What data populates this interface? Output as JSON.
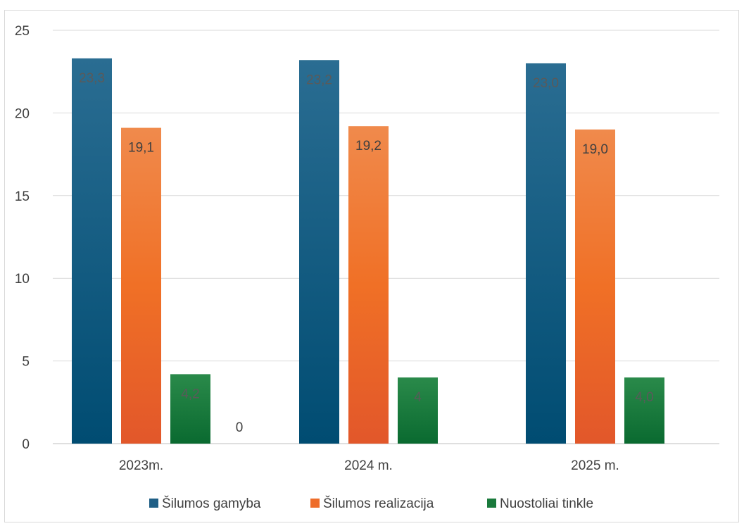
{
  "chart_data": {
    "type": "bar",
    "title": "",
    "xlabel": "",
    "ylabel": "",
    "ylim": [
      0,
      25
    ],
    "yticks": [
      "0",
      "5",
      "10",
      "15",
      "20",
      "25"
    ],
    "categories": [
      "2023m.",
      "2024 m.",
      "2025 m."
    ],
    "grid": true,
    "legend_position": "bottom",
    "series": [
      {
        "name": "Šilumos gamyba",
        "color": "#1f5f86",
        "values": [
          23.3,
          23.2,
          23.0
        ],
        "labels": [
          "23,3",
          "23,2",
          "23,0"
        ]
      },
      {
        "name": "Šilumos realizacija",
        "color": "#ee6d2a",
        "values": [
          19.1,
          19.2,
          19.0
        ],
        "labels": [
          "19,1",
          "19,2",
          "19,0"
        ]
      },
      {
        "name": "Nuostoliai tinkle",
        "color": "#1a7a3c",
        "values": [
          4.2,
          4,
          4.0
        ],
        "labels": [
          "4,2",
          "4",
          "4,0"
        ]
      }
    ],
    "annotations": [
      {
        "category": "2023m.",
        "text": "0"
      }
    ]
  }
}
